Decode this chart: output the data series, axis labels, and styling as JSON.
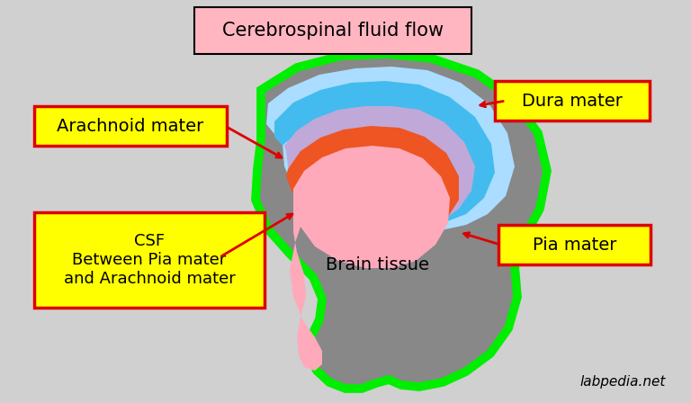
{
  "title": "Cerebrospinal fluid flow",
  "title_box_color": "#ffb6c1",
  "background_color": "#d0d0d0",
  "brain_outline_color": "#888888",
  "brain_outline_edge_color": "#00ee00",
  "dura_light_color": "#aaddff",
  "dura_dark_color": "#44bbee",
  "arachnoid_color": "#c0a8d8",
  "pia_color": "#ee5522",
  "brain_tissue_color": "#ffaabb",
  "label_box_color": "#ffff00",
  "label_box_edge_color": "#dd0000",
  "arrow_color": "#dd0000",
  "watermark": "labpedia.net",
  "labels": {
    "dura_mater": "Dura mater",
    "arachnoid_mater": "Arachnoid mater",
    "pia_mater": "Pia mater",
    "csf_line1": "CSF",
    "csf_line2": "Between Pia mater",
    "csf_line3": "and Arachnoid mater",
    "brain_tissue": "Brain tissue"
  }
}
